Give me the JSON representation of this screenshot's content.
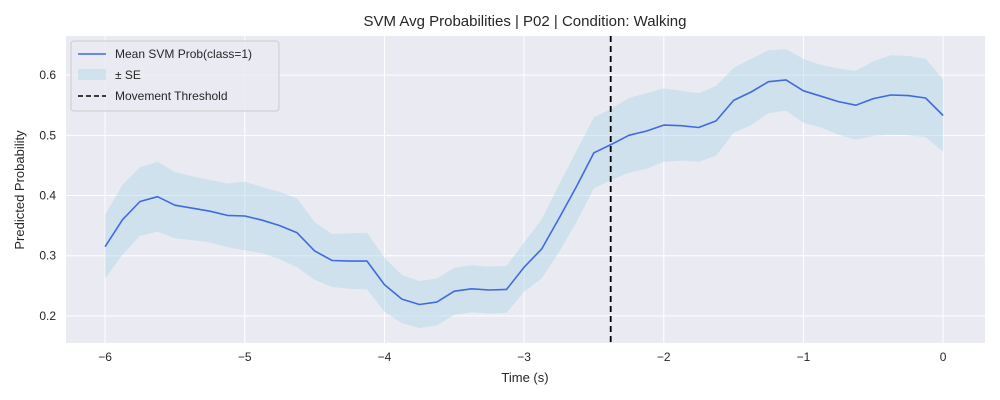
{
  "chart_data": {
    "type": "line",
    "title": "SVM Avg Probabilities | P02 | Condition: Walking",
    "xlabel": "Time (s)",
    "ylabel": "Predicted Probability",
    "xlim": [
      -6.28,
      0.3
    ],
    "ylim": [
      0.155,
      0.665
    ],
    "xticks": [
      -6,
      -5,
      -4,
      -3,
      -2,
      -1,
      0
    ],
    "xtick_labels": [
      "−6",
      "−5",
      "−4",
      "−3",
      "−2",
      "−1",
      "0"
    ],
    "yticks": [
      0.2,
      0.3,
      0.4,
      0.5,
      0.6
    ],
    "ytick_labels": [
      "0.2",
      "0.3",
      "0.4",
      "0.5",
      "0.6"
    ],
    "grid": true,
    "background": "#eaeaf2",
    "legend_position": "upper-left",
    "series": [
      {
        "name": "Mean SVM Prob(class=1)",
        "kind": "line",
        "color": "#4169e1",
        "x": [
          -6.0,
          -5.875,
          -5.75,
          -5.625,
          -5.5,
          -5.375,
          -5.25,
          -5.125,
          -5.0,
          -4.875,
          -4.75,
          -4.625,
          -4.5,
          -4.375,
          -4.25,
          -4.125,
          -4.0,
          -3.875,
          -3.75,
          -3.625,
          -3.5,
          -3.375,
          -3.25,
          -3.125,
          -3.0,
          -2.875,
          -2.75,
          -2.625,
          -2.5,
          -2.375,
          -2.25,
          -2.125,
          -2.0,
          -1.875,
          -1.75,
          -1.625,
          -1.5,
          -1.375,
          -1.25,
          -1.125,
          -1.0,
          -0.875,
          -0.75,
          -0.625,
          -0.5,
          -0.375,
          -0.25,
          -0.125,
          0.0
        ],
        "y": [
          0.315,
          0.36,
          0.39,
          0.398,
          0.384,
          0.379,
          0.374,
          0.367,
          0.366,
          0.359,
          0.35,
          0.338,
          0.308,
          0.292,
          0.291,
          0.291,
          0.252,
          0.228,
          0.219,
          0.223,
          0.241,
          0.245,
          0.243,
          0.244,
          0.281,
          0.311,
          0.362,
          0.415,
          0.471,
          0.485,
          0.5,
          0.507,
          0.517,
          0.516,
          0.513,
          0.524,
          0.558,
          0.572,
          0.589,
          0.592,
          0.574,
          0.565,
          0.556,
          0.55,
          0.561,
          0.567,
          0.566,
          0.562,
          0.533
        ]
      },
      {
        "name": "± SE",
        "kind": "band",
        "color": "#add8e6",
        "x": [
          -6.0,
          -5.875,
          -5.75,
          -5.625,
          -5.5,
          -5.375,
          -5.25,
          -5.125,
          -5.0,
          -4.875,
          -4.75,
          -4.625,
          -4.5,
          -4.375,
          -4.25,
          -4.125,
          -4.0,
          -3.875,
          -3.75,
          -3.625,
          -3.5,
          -3.375,
          -3.25,
          -3.125,
          -3.0,
          -2.875,
          -2.75,
          -2.625,
          -2.5,
          -2.375,
          -2.25,
          -2.125,
          -2.0,
          -1.875,
          -1.75,
          -1.625,
          -1.5,
          -1.375,
          -1.25,
          -1.125,
          -1.0,
          -0.875,
          -0.75,
          -0.625,
          -0.5,
          -0.375,
          -0.25,
          -0.125,
          0.0
        ],
        "upper": [
          0.368,
          0.418,
          0.447,
          0.456,
          0.439,
          0.432,
          0.426,
          0.42,
          0.423,
          0.414,
          0.406,
          0.395,
          0.356,
          0.336,
          0.337,
          0.338,
          0.297,
          0.268,
          0.258,
          0.262,
          0.28,
          0.284,
          0.282,
          0.283,
          0.322,
          0.36,
          0.418,
          0.474,
          0.53,
          0.544,
          0.562,
          0.57,
          0.578,
          0.574,
          0.57,
          0.582,
          0.612,
          0.627,
          0.641,
          0.643,
          0.627,
          0.617,
          0.611,
          0.607,
          0.623,
          0.633,
          0.632,
          0.627,
          0.593
        ],
        "lower": [
          0.262,
          0.302,
          0.333,
          0.34,
          0.329,
          0.326,
          0.322,
          0.314,
          0.309,
          0.304,
          0.294,
          0.281,
          0.26,
          0.248,
          0.245,
          0.244,
          0.207,
          0.188,
          0.18,
          0.184,
          0.202,
          0.206,
          0.204,
          0.205,
          0.24,
          0.262,
          0.306,
          0.356,
          0.412,
          0.426,
          0.438,
          0.444,
          0.456,
          0.458,
          0.456,
          0.466,
          0.504,
          0.517,
          0.537,
          0.541,
          0.521,
          0.513,
          0.501,
          0.493,
          0.499,
          0.501,
          0.5,
          0.497,
          0.473
        ]
      },
      {
        "name": "Movement Threshold",
        "kind": "vline",
        "color": "#000000",
        "x": -2.38
      }
    ]
  }
}
